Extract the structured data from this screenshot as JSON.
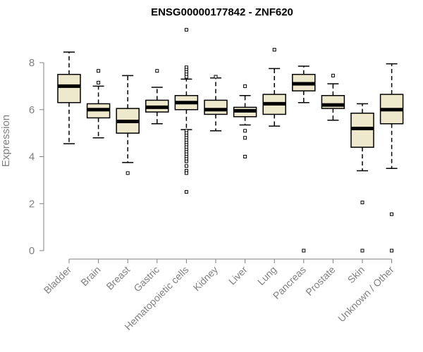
{
  "chart_data": {
    "type": "box",
    "title": "ENSG00000177842 - ZNF620",
    "xlabel": "",
    "ylabel": "Expression",
    "ylim": [
      0,
      9.6
    ],
    "yticks": [
      0,
      2,
      4,
      6,
      8
    ],
    "grid": false,
    "colors": {
      "box_fill": "#eee8cd",
      "box_stroke": "#000000",
      "axis": "#808080",
      "title": "#000000"
    },
    "categories": [
      "Bladder",
      "Brain",
      "Breast",
      "Gastric",
      "Hematopoietic cells",
      "Kidney",
      "Liver",
      "Lung",
      "Pancreas",
      "Prostate",
      "Skin",
      "Unknown / Other"
    ],
    "boxes": [
      {
        "q1": 6.3,
        "median": 7.0,
        "q3": 7.5,
        "whisker_low": 4.55,
        "whisker_high": 8.45,
        "outliers": []
      },
      {
        "q1": 5.65,
        "median": 6.0,
        "q3": 6.25,
        "whisker_low": 4.8,
        "whisker_high": 7.0,
        "outliers": [
          7.65,
          7.15
        ]
      },
      {
        "q1": 5.0,
        "median": 5.5,
        "q3": 6.05,
        "whisker_low": 3.75,
        "whisker_high": 7.45,
        "outliers": [
          3.3
        ]
      },
      {
        "q1": 5.9,
        "median": 6.1,
        "q3": 6.4,
        "whisker_low": 5.4,
        "whisker_high": 6.95,
        "outliers": [
          7.65
        ]
      },
      {
        "q1": 6.0,
        "median": 6.3,
        "q3": 6.6,
        "whisker_low": 5.15,
        "whisker_high": 7.3,
        "outliers": [
          9.4,
          7.8,
          7.7,
          7.6,
          7.5,
          7.4,
          5.1,
          5.0,
          4.9,
          4.8,
          4.7,
          4.6,
          4.5,
          4.4,
          4.3,
          4.2,
          4.1,
          4.0,
          3.9,
          3.8,
          3.6,
          3.4,
          3.3,
          2.5
        ]
      },
      {
        "q1": 5.8,
        "median": 6.0,
        "q3": 6.4,
        "whisker_low": 5.1,
        "whisker_high": 7.35,
        "outliers": [
          7.4
        ]
      },
      {
        "q1": 5.7,
        "median": 5.95,
        "q3": 6.1,
        "whisker_low": 5.35,
        "whisker_high": 6.6,
        "outliers": [
          7.0,
          5.1,
          4.8,
          4.0
        ]
      },
      {
        "q1": 5.8,
        "median": 6.25,
        "q3": 6.65,
        "whisker_low": 5.3,
        "whisker_high": 7.75,
        "outliers": [
          8.55
        ]
      },
      {
        "q1": 6.8,
        "median": 7.1,
        "q3": 7.5,
        "whisker_low": 6.3,
        "whisker_high": 7.85,
        "outliers": [
          0.0
        ]
      },
      {
        "q1": 6.05,
        "median": 6.2,
        "q3": 6.6,
        "whisker_low": 5.55,
        "whisker_high": 7.1,
        "outliers": [
          7.45
        ]
      },
      {
        "q1": 4.4,
        "median": 5.2,
        "q3": 5.85,
        "whisker_low": 3.4,
        "whisker_high": 6.25,
        "outliers": [
          2.05,
          0.0
        ]
      },
      {
        "q1": 5.4,
        "median": 6.0,
        "q3": 6.65,
        "whisker_low": 3.5,
        "whisker_high": 7.95,
        "outliers": [
          1.55,
          0.0
        ]
      }
    ]
  }
}
